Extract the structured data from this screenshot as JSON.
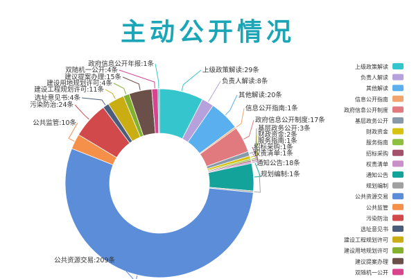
{
  "chart_data": {
    "type": "pie",
    "variant": "donut",
    "title": "主动公开情况",
    "unit": "条",
    "legend_position": "right",
    "slices": [
      {
        "name": "上级政策解读",
        "value": 29,
        "color": "#35c5cc"
      },
      {
        "name": "负责人解读",
        "value": 8,
        "color": "#b6a1dc"
      },
      {
        "name": "其他解读",
        "value": 20,
        "color": "#5ab0ee"
      },
      {
        "name": "信息公开指南",
        "value": 1,
        "color": "#f2a46e"
      },
      {
        "name": "政府信息公开制度",
        "value": 17,
        "color": "#e07a7e"
      },
      {
        "name": "基层政务公开",
        "value": 3,
        "color": "#8899aa"
      },
      {
        "name": "财政资金",
        "value": 2,
        "color": "#d6c211"
      },
      {
        "name": "服务指南",
        "value": 1,
        "color": "#8fbf3e"
      },
      {
        "name": "招标采购",
        "value": 1,
        "color": "#a3506a"
      },
      {
        "name": "权责清单",
        "value": 1,
        "color": "#c890c8"
      },
      {
        "name": "通知公告",
        "value": 18,
        "color": "#14a39a"
      },
      {
        "name": "规划编制",
        "value": 1,
        "color": "#a0a0a0"
      },
      {
        "name": "公共资源交易",
        "value": 209,
        "color": "#5b8dd9"
      },
      {
        "name": "公共监管",
        "value": 10,
        "color": "#f5904a"
      },
      {
        "name": "污染防治",
        "value": 24,
        "color": "#d1494b"
      },
      {
        "name": "选址意见书",
        "value": 4,
        "color": "#4b5d7a"
      },
      {
        "name": "建设工程规划许可",
        "value": 11,
        "color": "#c9ad12"
      },
      {
        "name": "建设用地规划许可",
        "value": 4,
        "color": "#85b02d"
      },
      {
        "name": "建议提案办理",
        "value": 15,
        "color": "#6b5049"
      },
      {
        "name": "双随机一公开",
        "value": 4,
        "color": "#d8458f"
      },
      {
        "name": "政府信息公开年报",
        "value": 1,
        "color": "#33c7c7"
      }
    ]
  }
}
